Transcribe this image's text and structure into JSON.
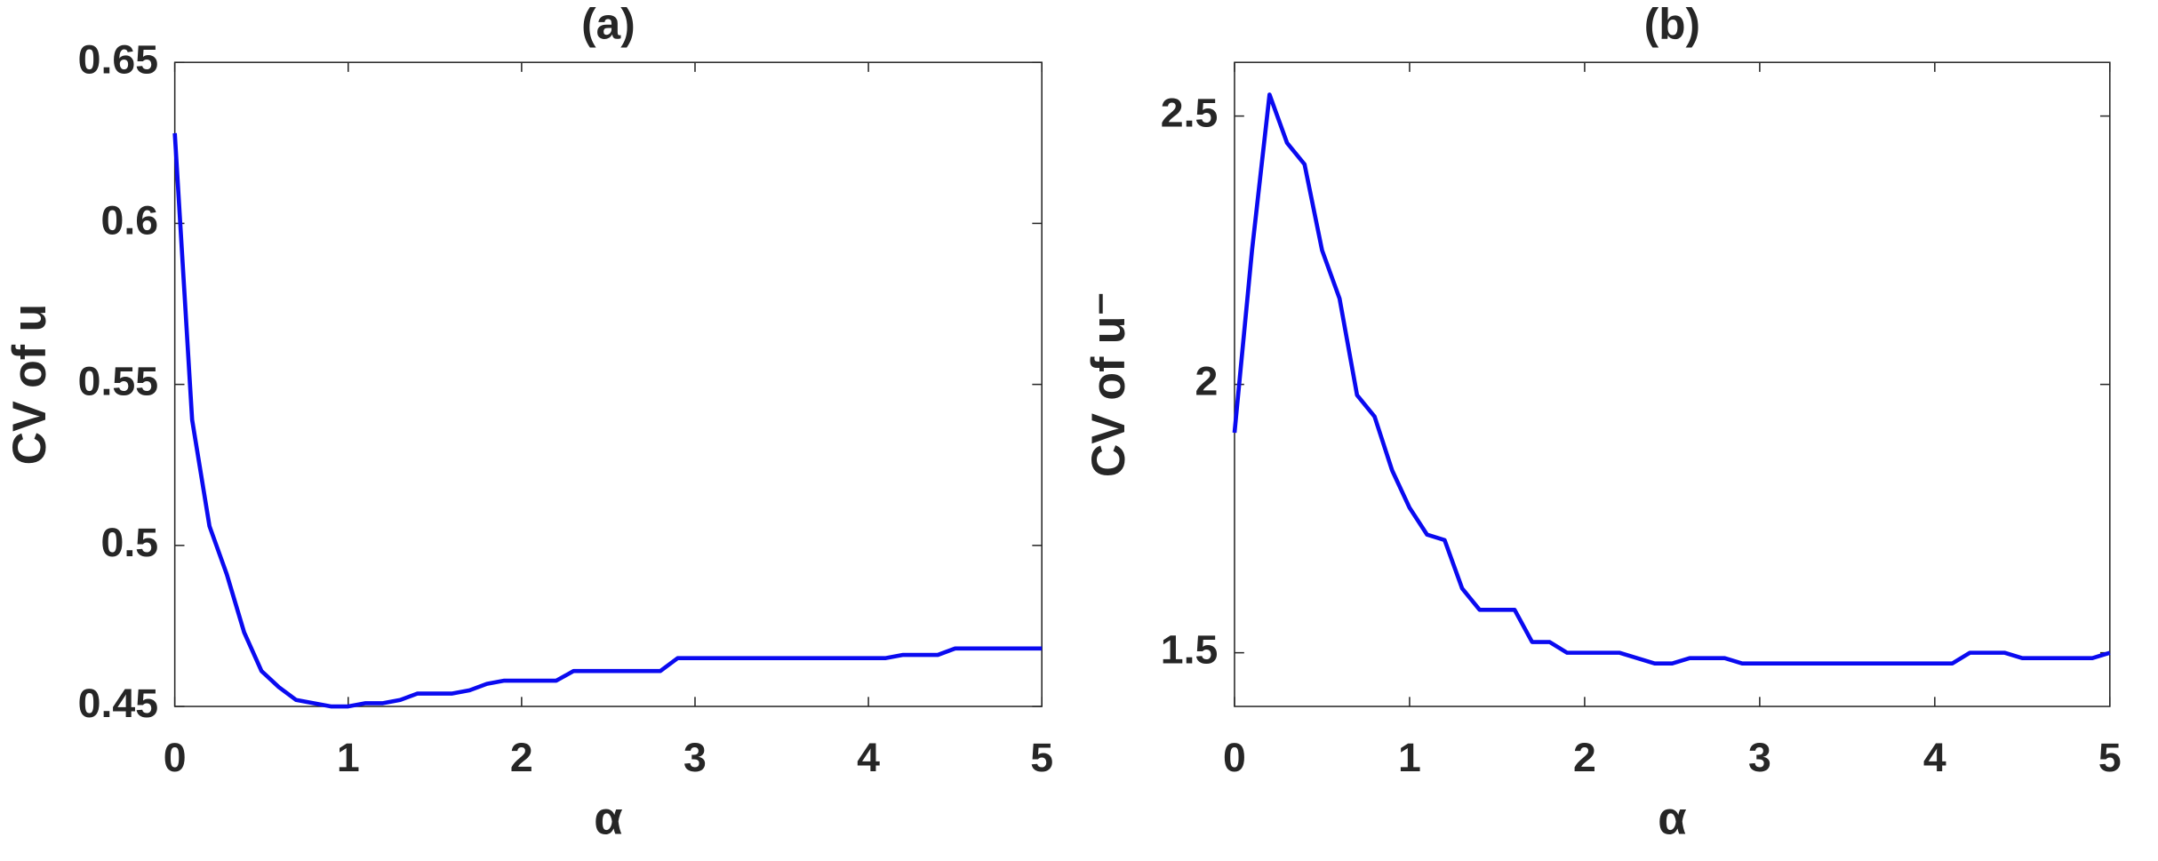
{
  "chart_data": [
    {
      "type": "line",
      "title": "(a)",
      "x_label": "α",
      "y_label": "CV of u",
      "x": [
        0,
        0.1,
        0.2,
        0.3,
        0.4,
        0.5,
        0.6,
        0.7,
        0.8,
        0.9,
        1,
        1.1,
        1.2,
        1.3,
        1.4,
        1.5,
        1.6,
        1.7,
        1.8,
        1.9,
        2,
        2.1,
        2.2,
        2.3,
        2.4,
        2.5,
        2.6,
        2.7,
        2.8,
        2.9,
        3,
        3.1,
        3.2,
        3.3,
        3.4,
        3.5,
        3.6,
        3.7,
        3.8,
        3.9,
        4,
        4.1,
        4.2,
        4.3,
        4.4,
        4.5,
        4.6,
        4.7,
        4.8,
        4.9,
        5
      ],
      "series": [
        {
          "color": "#0a0af0",
          "values": [
            0.628,
            0.539,
            0.506,
            0.491,
            0.473,
            0.461,
            0.456,
            0.452,
            0.451,
            0.45,
            0.45,
            0.451,
            0.451,
            0.452,
            0.454,
            0.454,
            0.454,
            0.455,
            0.457,
            0.458,
            0.458,
            0.458,
            0.458,
            0.461,
            0.461,
            0.461,
            0.461,
            0.461,
            0.461,
            0.465,
            0.465,
            0.465,
            0.465,
            0.465,
            0.465,
            0.465,
            0.465,
            0.465,
            0.465,
            0.465,
            0.465,
            0.465,
            0.466,
            0.466,
            0.466,
            0.468,
            0.468,
            0.468,
            0.468,
            0.468,
            0.468
          ]
        }
      ],
      "xlim": [
        0,
        5
      ],
      "xticks": [
        0,
        1,
        2,
        3,
        4,
        5
      ],
      "ylim": [
        0.45,
        0.65
      ],
      "yticks": [
        0.45,
        0.5,
        0.55,
        0.6,
        0.65
      ]
    },
    {
      "type": "line",
      "title": "(b)",
      "x_label": "α",
      "y_label": "CV of u⁻",
      "x": [
        0,
        0.1,
        0.2,
        0.3,
        0.4,
        0.5,
        0.6,
        0.7,
        0.8,
        0.9,
        1,
        1.1,
        1.2,
        1.3,
        1.4,
        1.5,
        1.6,
        1.7,
        1.8,
        1.9,
        2,
        2.1,
        2.2,
        2.3,
        2.4,
        2.5,
        2.6,
        2.7,
        2.8,
        2.9,
        3,
        3.1,
        3.2,
        3.3,
        3.4,
        3.5,
        3.6,
        3.7,
        3.8,
        3.9,
        4,
        4.1,
        4.2,
        4.3,
        4.4,
        4.5,
        4.6,
        4.7,
        4.8,
        4.9,
        5
      ],
      "series": [
        {
          "color": "#0a0af0",
          "values": [
            1.91,
            2.25,
            2.54,
            2.45,
            2.41,
            2.25,
            2.16,
            1.98,
            1.94,
            1.84,
            1.77,
            1.72,
            1.71,
            1.62,
            1.58,
            1.58,
            1.58,
            1.52,
            1.52,
            1.5,
            1.5,
            1.5,
            1.5,
            1.49,
            1.48,
            1.48,
            1.49,
            1.49,
            1.49,
            1.48,
            1.48,
            1.48,
            1.48,
            1.48,
            1.48,
            1.48,
            1.48,
            1.48,
            1.48,
            1.48,
            1.48,
            1.48,
            1.5,
            1.5,
            1.5,
            1.49,
            1.49,
            1.49,
            1.49,
            1.49,
            1.5
          ]
        }
      ],
      "xlim": [
        0,
        5
      ],
      "xticks": [
        0,
        1,
        2,
        3,
        4,
        5
      ],
      "ylim": [
        1.4,
        2.6
      ],
      "yticks": [
        1.5,
        2,
        2.5
      ]
    }
  ]
}
